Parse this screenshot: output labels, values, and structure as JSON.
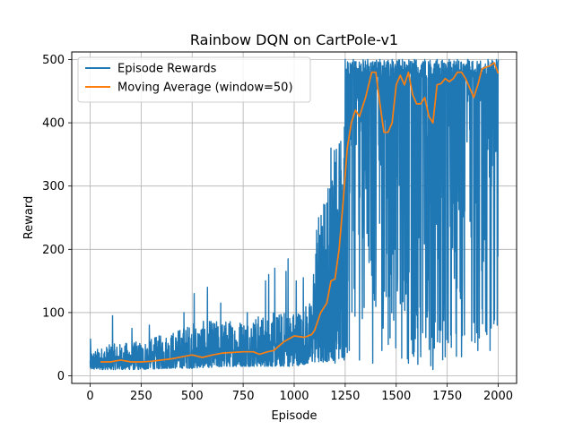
{
  "chart_data": {
    "type": "line",
    "title": "Rainbow DQN on CartPole-v1",
    "xlabel": "Episode",
    "ylabel": "Reward",
    "xlim": [
      -90,
      2090
    ],
    "ylim": [
      -12,
      512
    ],
    "xticks": [
      0,
      250,
      500,
      750,
      1000,
      1250,
      1500,
      1750,
      2000
    ],
    "yticks": [
      0,
      100,
      200,
      300,
      400,
      500
    ],
    "grid": true,
    "legend_position": "top-left",
    "series": [
      {
        "name": "Episode Rewards",
        "color": "#1f77b4",
        "kind": "noisy",
        "envelope": [
          [
            0,
            10,
            40
          ],
          [
            100,
            10,
            50
          ],
          [
            250,
            10,
            55
          ],
          [
            400,
            12,
            70
          ],
          [
            500,
            12,
            85
          ],
          [
            700,
            15,
            90
          ],
          [
            800,
            15,
            95
          ],
          [
            1000,
            15,
            105
          ],
          [
            1080,
            20,
            120
          ],
          [
            1120,
            20,
            250
          ],
          [
            1200,
            25,
            380
          ],
          [
            1260,
            30,
            500
          ],
          [
            1300,
            60,
            500
          ],
          [
            1400,
            60,
            500
          ],
          [
            1500,
            20,
            500
          ],
          [
            1700,
            15,
            500
          ],
          [
            1900,
            40,
            500
          ],
          [
            2000,
            80,
            500
          ]
        ],
        "spikes": [
          [
            2,
            58
          ],
          [
            110,
            95
          ],
          [
            205,
            75
          ],
          [
            290,
            80
          ],
          [
            460,
            100
          ],
          [
            510,
            130
          ],
          [
            575,
            140
          ],
          [
            640,
            115
          ],
          [
            770,
            100
          ],
          [
            860,
            150
          ],
          [
            875,
            160
          ],
          [
            905,
            170
          ],
          [
            960,
            165
          ],
          [
            970,
            185
          ],
          [
            1010,
            150
          ],
          [
            1045,
            155
          ],
          [
            1095,
            160
          ],
          [
            1110,
            230
          ],
          [
            1120,
            250
          ],
          [
            1150,
            270
          ],
          [
            1180,
            360
          ],
          [
            1250,
            500
          ],
          [
            1290,
            500
          ],
          [
            1320,
            500
          ],
          [
            1360,
            500
          ],
          [
            1420,
            500
          ],
          [
            1480,
            500
          ],
          [
            1530,
            500
          ],
          [
            1590,
            500
          ],
          [
            1640,
            500
          ],
          [
            1700,
            500
          ],
          [
            1760,
            500
          ],
          [
            1800,
            500
          ],
          [
            1850,
            500
          ],
          [
            1900,
            500
          ],
          [
            1950,
            500
          ],
          [
            2000,
            500
          ]
        ],
        "dips": [
          [
            1170,
            30
          ],
          [
            1200,
            20
          ],
          [
            1245,
            25
          ],
          [
            1270,
            40
          ],
          [
            1320,
            25
          ],
          [
            1385,
            20
          ],
          [
            1430,
            40
          ],
          [
            1470,
            60
          ],
          [
            1560,
            20
          ],
          [
            1580,
            35
          ],
          [
            1620,
            30
          ],
          [
            1680,
            10
          ],
          [
            1740,
            30
          ],
          [
            1770,
            45
          ],
          [
            1820,
            30
          ],
          [
            1870,
            55
          ],
          [
            1900,
            40
          ],
          [
            1960,
            40
          ],
          [
            1995,
            80
          ]
        ]
      },
      {
        "name": "Moving Average (window=50)",
        "color": "#ff7f0e",
        "kind": "smooth",
        "points": [
          [
            50,
            22
          ],
          [
            100,
            22
          ],
          [
            150,
            25
          ],
          [
            200,
            22
          ],
          [
            250,
            22
          ],
          [
            300,
            23
          ],
          [
            350,
            25
          ],
          [
            400,
            27
          ],
          [
            450,
            30
          ],
          [
            500,
            33
          ],
          [
            550,
            29
          ],
          [
            600,
            33
          ],
          [
            650,
            36
          ],
          [
            700,
            37
          ],
          [
            750,
            38
          ],
          [
            800,
            38
          ],
          [
            830,
            34
          ],
          [
            870,
            38
          ],
          [
            900,
            40
          ],
          [
            950,
            54
          ],
          [
            1000,
            63
          ],
          [
            1050,
            61
          ],
          [
            1085,
            65
          ],
          [
            1100,
            72
          ],
          [
            1130,
            100
          ],
          [
            1160,
            115
          ],
          [
            1180,
            150
          ],
          [
            1200,
            153
          ],
          [
            1220,
            200
          ],
          [
            1240,
            275
          ],
          [
            1260,
            360
          ],
          [
            1280,
            400
          ],
          [
            1300,
            420
          ],
          [
            1320,
            410
          ],
          [
            1350,
            440
          ],
          [
            1380,
            480
          ],
          [
            1400,
            480
          ],
          [
            1420,
            430
          ],
          [
            1440,
            385
          ],
          [
            1460,
            385
          ],
          [
            1480,
            400
          ],
          [
            1500,
            460
          ],
          [
            1520,
            475
          ],
          [
            1540,
            460
          ],
          [
            1560,
            480
          ],
          [
            1580,
            445
          ],
          [
            1600,
            430
          ],
          [
            1620,
            430
          ],
          [
            1640,
            440
          ],
          [
            1660,
            410
          ],
          [
            1680,
            400
          ],
          [
            1700,
            460
          ],
          [
            1720,
            462
          ],
          [
            1740,
            470
          ],
          [
            1760,
            465
          ],
          [
            1780,
            470
          ],
          [
            1800,
            480
          ],
          [
            1820,
            480
          ],
          [
            1840,
            470
          ],
          [
            1860,
            455
          ],
          [
            1880,
            440
          ],
          [
            1900,
            460
          ],
          [
            1920,
            485
          ],
          [
            1940,
            488
          ],
          [
            1960,
            490
          ],
          [
            1980,
            495
          ],
          [
            2000,
            478
          ]
        ]
      }
    ]
  }
}
